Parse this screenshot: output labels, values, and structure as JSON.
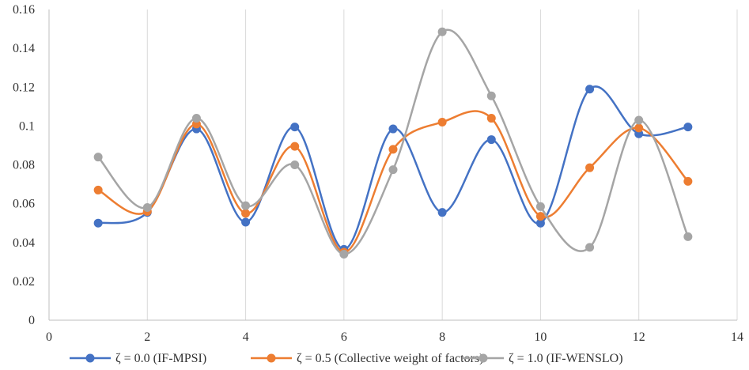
{
  "chart_data": {
    "type": "line",
    "smooth": true,
    "xlim": [
      0,
      14
    ],
    "ylim": [
      0,
      0.16
    ],
    "x_ticks": [
      0,
      2,
      4,
      6,
      8,
      10,
      12,
      14
    ],
    "x_tick_labels": [
      "0",
      "2",
      "4",
      "6",
      "8",
      "10",
      "12",
      "14"
    ],
    "y_ticks": [
      0,
      0.02,
      0.04,
      0.06,
      0.08,
      0.1,
      0.12,
      0.14,
      0.16
    ],
    "y_tick_labels": [
      "0",
      "0.02",
      "0.04",
      "0.06",
      "0.08",
      "0.1",
      "0.12",
      "0.14",
      "0.16"
    ],
    "grid": "vertical",
    "legend_position": "bottom",
    "x": [
      1,
      2,
      3,
      4,
      5,
      6,
      7,
      8,
      9,
      10,
      11,
      12,
      13
    ],
    "series": [
      {
        "name": "ζ = 0.0 (IF-MPSI)",
        "color": "#4472C4",
        "values": [
          0.05,
          0.0555,
          0.0985,
          0.0505,
          0.0995,
          0.0365,
          0.0985,
          0.0555,
          0.093,
          0.05,
          0.119,
          0.096,
          0.0995
        ]
      },
      {
        "name": "ζ = 0.5 (Collective weight of factors)",
        "color": "#ED7D31",
        "values": [
          0.067,
          0.056,
          0.101,
          0.055,
          0.0895,
          0.035,
          0.088,
          0.102,
          0.104,
          0.0535,
          0.0785,
          0.099,
          0.0715
        ]
      },
      {
        "name": "ζ = 1.0 (IF-WENSLO)",
        "color": "#A5A5A5",
        "values": [
          0.084,
          0.058,
          0.104,
          0.059,
          0.08,
          0.034,
          0.0775,
          0.1485,
          0.1155,
          0.0585,
          0.0375,
          0.103,
          0.043
        ]
      }
    ]
  }
}
